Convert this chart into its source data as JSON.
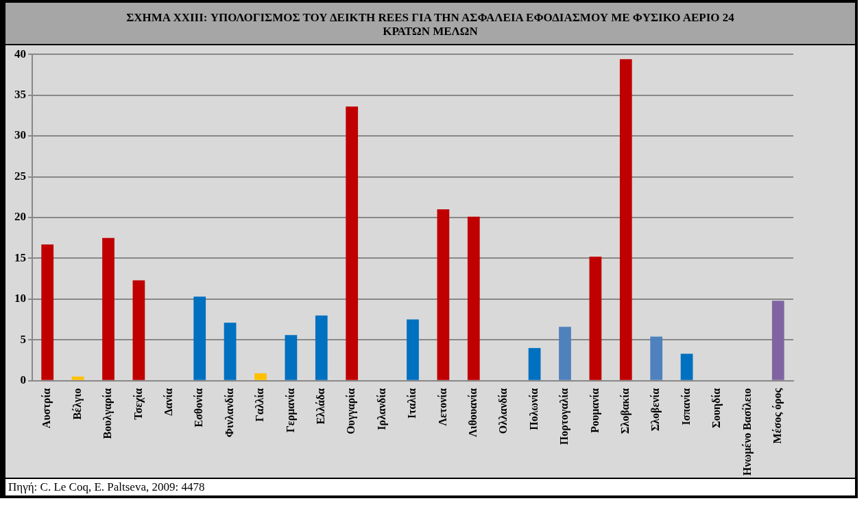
{
  "chart_data": {
    "type": "bar",
    "title": "ΣΧΗΜΑ XXIII: ΥΠΟΛΟΓΙΣΜΟΣ ΤΟΥ ΔΕΙΚΤΗ REES ΓΙΑ ΤΗΝ ΑΣΦΑΛΕΙΑ ΕΦΟΔΙΑΣΜΟΥ ΜΕ ΦΥΣΙΚΟ ΑΕΡΙΟ 24 ΚΡΑΤΩΝ ΜΕΛΩΝ",
    "categories": [
      "Αυστρία",
      "Βέλγιο",
      "Βουλγαρία",
      "Τσεχία",
      "Δανία",
      "Εσθονία",
      "Φινλανδία",
      "Γαλλία",
      "Γερμανία",
      "Ελλάδα",
      "Ουγγαρία",
      "Ιρλανδία",
      "Ιταλία",
      "Λετονία",
      "Λιθουανία",
      "Ολλανδία",
      "Πολωνία",
      "Πορτογαλία",
      "Ρουμανία",
      "Σλοβακία",
      "Σλοβενία",
      "Ισπανία",
      "Σουηδία",
      "Ηνωμένο Βασίλειο",
      "Μέσος όρος"
    ],
    "values": [
      16.7,
      0.5,
      17.5,
      12.3,
      0,
      10.3,
      7.1,
      0.9,
      5.6,
      8,
      33.6,
      0,
      7.5,
      21,
      20.1,
      0,
      4,
      6.6,
      15.2,
      39.4,
      5.4,
      3.3,
      0,
      0,
      9.8
    ],
    "colors": [
      "#c00000",
      "#ffc000",
      "#c00000",
      "#c00000",
      "#ffc000",
      "#0070c0",
      "#0070c0",
      "#ffc000",
      "#0070c0",
      "#0070c0",
      "#c00000",
      "#ffc000",
      "#0070c0",
      "#c00000",
      "#c00000",
      "#ffc000",
      "#0070c0",
      "#4f81bd",
      "#c00000",
      "#c00000",
      "#4f81bd",
      "#0070c0",
      "#ffc000",
      "#ffc000",
      "#8064a2"
    ],
    "ylim": [
      0,
      40
    ],
    "yticks": [
      0,
      5,
      10,
      15,
      20,
      25,
      30,
      35,
      40
    ],
    "grid": "y",
    "annotations": [
      "Πηγή: C. Le Coq, E. Paltseva, 2009: 4478"
    ]
  }
}
